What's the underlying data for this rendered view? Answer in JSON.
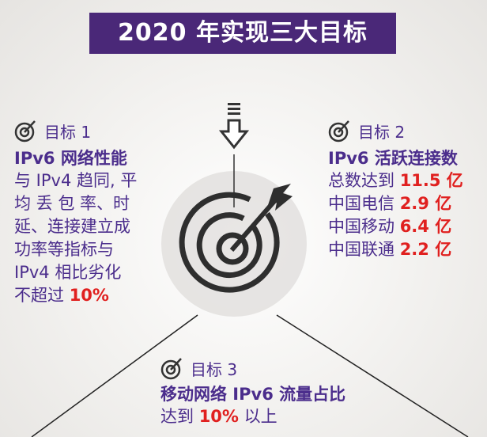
{
  "header": {
    "title": "2020 年实现三大目标"
  },
  "colors": {
    "banner": "#4a2878",
    "text": "#4b2d8c",
    "highlight": "#e0201f",
    "icon": "#333333"
  },
  "goals": [
    {
      "label": "目标 1",
      "icon": "target-icon",
      "title": "IPv6 网络性能",
      "lines": [
        "与 IPv4 趋同, 平",
        "均 丢 包 率、时",
        "延、连接建立成",
        "功率等指标与",
        "IPv4 相比劣化"
      ],
      "last_prefix": "不超过 ",
      "last_value": "10%"
    },
    {
      "label": "目标 2",
      "icon": "target-icon",
      "title": "IPv6 活跃连接数",
      "rows": [
        {
          "text": "总数达到 ",
          "value": "11.5 亿"
        },
        {
          "text": "中国电信 ",
          "value": "2.9 亿"
        },
        {
          "text": "中国移动 ",
          "value": "6.4 亿"
        },
        {
          "text": "中国联通 ",
          "value": "2.2 亿"
        }
      ]
    },
    {
      "label": "目标 3",
      "icon": "target-icon",
      "title": "移动网络 IPv6 流量占比",
      "prefix": "达到 ",
      "value": "10%",
      "suffix": " 以上"
    }
  ]
}
